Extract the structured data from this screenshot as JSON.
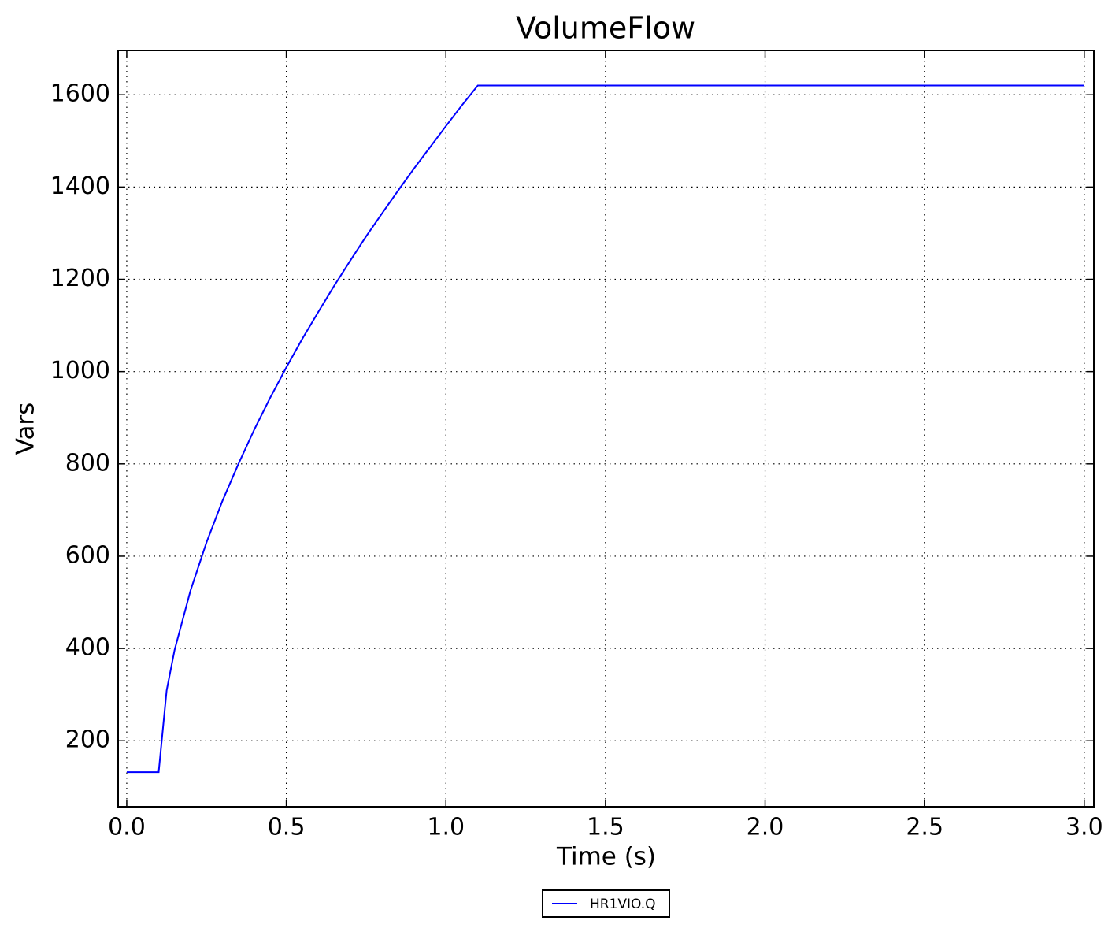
{
  "chart_data": {
    "type": "line",
    "title": "VolumeFlow",
    "x_label": "Time (s)",
    "y_label": "Vars",
    "series": [
      {
        "name": "HR1VIO.Q",
        "color": "#0000ff",
        "x": [
          0,
          0.1,
          0.125,
          0.15,
          0.2,
          0.25,
          0.3,
          0.35,
          0.4,
          0.45,
          0.5,
          0.55,
          0.6,
          0.65,
          0.7,
          0.75,
          0.8,
          0.85,
          0.9,
          0.95,
          1.0,
          1.05,
          1.1,
          3.0
        ],
        "values": [
          132,
          132,
          309,
          397,
          526,
          630,
          720,
          800,
          875,
          944,
          1009,
          1071,
          1129,
          1186,
          1240,
          1293,
          1343,
          1392,
          1440,
          1486,
          1532,
          1577,
          1620,
          1620
        ]
      }
    ],
    "xlim": [
      -0.027,
      3.03
    ],
    "ylim": [
      57,
      1696
    ],
    "xticks": [
      {
        "value": 0,
        "label": "0.0"
      },
      0.5,
      {
        "value": 1,
        "label": "1.0"
      },
      1.5,
      {
        "value": 2,
        "label": "2.0"
      },
      2.5,
      {
        "value": 3,
        "label": "3.0"
      }
    ],
    "yticks": [
      200,
      400,
      600,
      800,
      1000,
      1200,
      1400,
      1600
    ],
    "grid": true,
    "legend": "bottom"
  }
}
